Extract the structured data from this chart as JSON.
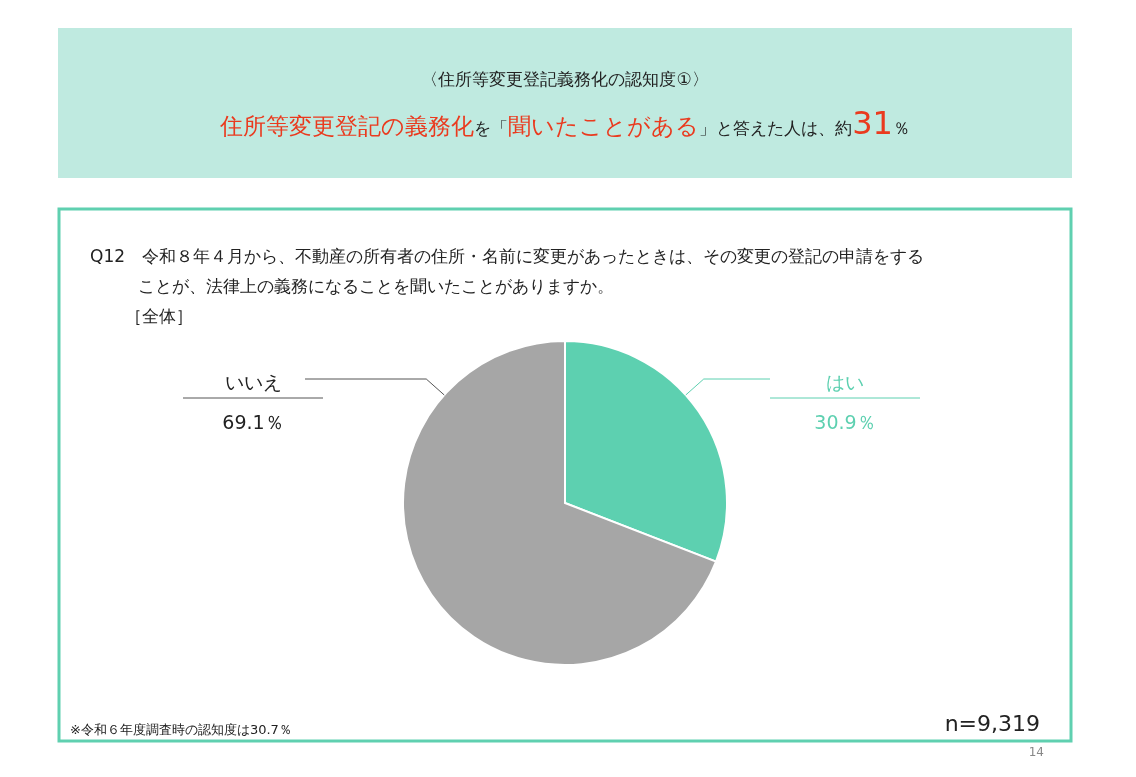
{
  "chart_data": {
    "type": "pie",
    "title": "〈住所等変更登記義務化の認知度①〉",
    "subtitle": "**住所等変更登記の義務化**を「**聞いたことがある**」と答えた人は、約**31**％",
    "categories": [
      "はい",
      "いいえ"
    ],
    "values": [
      30.9,
      69.1
    ],
    "colors": [
      "#5dd0b0",
      "#a6a6a6"
    ],
    "value_labels": [
      "30.9％",
      "69.1％"
    ],
    "annotations": [
      "Q12　令和８年４月から、不動産の所有者の住所・名前に変更があったときは、その変更の登記の申請をする",
      "ことが、法律上の義務になることを聞いたことがありますか。",
      "［全体］",
      "※令和６年度調査時の認知度は30.7％",
      "n=9,319",
      "14"
    ]
  }
}
